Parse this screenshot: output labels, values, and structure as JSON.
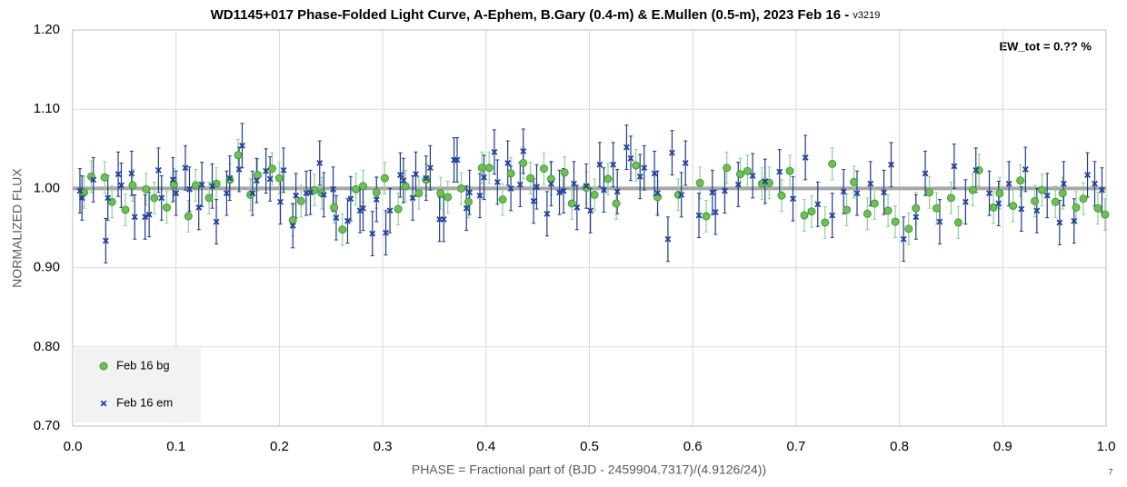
{
  "chart_data": {
    "type": "scatter",
    "title": "WD1145+017 Phase-Folded Light Curve, A-Ephem, B.Gary (0.4-m) & E.Mullen (0.5-m), 2023 Feb 16 - ",
    "subtitle": "v3219",
    "annotation": "EW_tot = 0.?? %",
    "x_label": "PHASE = Fractional part of (BJD - 2459904.7317)/(4.9126/24))",
    "y_label": "NORMALIZED FLUX",
    "footnote": "7",
    "xlim": [
      0,
      1
    ],
    "ylim": [
      0.7,
      1.2
    ],
    "xticks": [
      {
        "value": 0,
        "label": "0.0"
      },
      {
        "value": 0.1,
        "label": "0.1"
      },
      {
        "value": 0.2,
        "label": "0.2"
      },
      {
        "value": 0.3,
        "label": "0.3"
      },
      {
        "value": 0.4,
        "label": "0.4"
      },
      {
        "value": 0.5,
        "label": "0.5"
      },
      {
        "value": 0.6,
        "label": "0.6"
      },
      {
        "value": 0.7,
        "label": "0.7"
      },
      {
        "value": 0.8,
        "label": "0.8"
      },
      {
        "value": 0.9,
        "label": "0.9"
      },
      {
        "value": 1,
        "label": "1.0"
      }
    ],
    "yticks": [
      {
        "value": 0.7,
        "label": "0.70"
      },
      {
        "value": 0.8,
        "label": "0.80"
      },
      {
        "value": 0.9,
        "label": "0.90"
      },
      {
        "value": 1.0,
        "label": "1.00"
      },
      {
        "value": 1.1,
        "label": "1.10"
      },
      {
        "value": 1.2,
        "label": "1.20"
      }
    ],
    "grid": true,
    "legend": "bottom-left",
    "reference_line": {
      "y": 1.0,
      "color": "#a6a6a6"
    },
    "series": [
      {
        "name": "Feb 16 bg",
        "marker": "circle",
        "color": "#70c050",
        "error_color": "#8fd18f",
        "error": 0.02,
        "x": [
          0.011,
          0.018,
          0.031,
          0.038,
          0.051,
          0.058,
          0.071,
          0.079,
          0.091,
          0.098,
          0.112,
          0.119,
          0.132,
          0.139,
          0.152,
          0.16,
          0.172,
          0.179,
          0.193,
          0.2,
          0.213,
          0.221,
          0.234,
          0.241,
          0.253,
          0.261,
          0.274,
          0.281,
          0.294,
          0.302,
          0.315,
          0.322,
          0.335,
          0.342,
          0.356,
          0.363,
          0.376,
          0.383,
          0.396,
          0.403,
          0.416,
          0.424,
          0.436,
          0.443,
          0.456,
          0.463,
          0.476,
          0.483,
          0.497,
          0.505,
          0.518,
          0.526,
          0.545,
          0.566,
          0.586,
          0.607,
          0.613,
          0.633,
          0.646,
          0.653,
          0.667,
          0.674,
          0.686,
          0.694,
          0.708,
          0.715,
          0.728,
          0.735,
          0.749,
          0.756,
          0.769,
          0.776,
          0.789,
          0.796,
          0.809,
          0.816,
          0.829,
          0.836,
          0.85,
          0.857,
          0.871,
          0.877,
          0.891,
          0.897,
          0.91,
          0.917,
          0.931,
          0.938,
          0.951,
          0.958,
          0.971,
          0.978,
          0.992,
          0.999
        ],
        "values": [
          0.995,
          1.015,
          1.014,
          0.983,
          0.973,
          1.004,
          0.999,
          0.988,
          0.976,
          1.005,
          0.965,
          1.004,
          0.988,
          1.006,
          1.011,
          1.042,
          0.992,
          1.017,
          1.025,
          1.013,
          0.96,
          0.984,
          0.998,
          0.994,
          0.976,
          0.948,
          0.999,
          1.003,
          0.995,
          1.013,
          0.974,
          1.003,
          0.994,
          1.011,
          0.994,
          0.989,
          1.0,
          0.983,
          1.026,
          1.026,
          0.986,
          1.019,
          1.032,
          1.013,
          1.025,
          1.012,
          1.02,
          0.981,
          1.001,
          0.992,
          1.012,
          0.981,
          1.029,
          0.989,
          0.992,
          1.007,
          0.965,
          1.026,
          1.018,
          1.022,
          1.006,
          1.007,
          0.991,
          1.022,
          0.966,
          0.971,
          0.957,
          1.031,
          0.973,
          1.008,
          0.968,
          0.981,
          0.972,
          0.958,
          0.949,
          0.975,
          0.995,
          0.975,
          0.988,
          0.957,
          0.998,
          1.023,
          0.976,
          0.994,
          0.978,
          1.01,
          0.984,
          0.998,
          0.983,
          0.994,
          0.976,
          0.987,
          0.975,
          0.967
        ]
      },
      {
        "name": "Feb 16 em",
        "marker": "x",
        "color": "#2040a0",
        "error_color": "#1f3a93",
        "error": 0.028,
        "x": [
          0.007,
          0.009,
          0.02,
          0.032,
          0.034,
          0.044,
          0.047,
          0.057,
          0.06,
          0.07,
          0.074,
          0.083,
          0.086,
          0.097,
          0.1,
          0.109,
          0.113,
          0.122,
          0.125,
          0.135,
          0.139,
          0.149,
          0.152,
          0.161,
          0.164,
          0.174,
          0.178,
          0.187,
          0.191,
          0.201,
          0.204,
          0.213,
          0.216,
          0.226,
          0.23,
          0.239,
          0.243,
          0.252,
          0.255,
          0.266,
          0.269,
          0.278,
          0.281,
          0.29,
          0.294,
          0.303,
          0.307,
          0.317,
          0.32,
          0.329,
          0.332,
          0.342,
          0.346,
          0.355,
          0.359,
          0.369,
          0.372,
          0.381,
          0.384,
          0.394,
          0.398,
          0.408,
          0.411,
          0.421,
          0.424,
          0.433,
          0.436,
          0.446,
          0.449,
          0.459,
          0.463,
          0.471,
          0.475,
          0.485,
          0.488,
          0.497,
          0.501,
          0.51,
          0.514,
          0.523,
          0.527,
          0.536,
          0.54,
          0.549,
          0.553,
          0.563,
          0.566,
          0.576,
          0.58,
          0.589,
          0.593,
          0.606,
          0.619,
          0.622,
          0.631,
          0.644,
          0.658,
          0.67,
          0.684,
          0.697,
          0.709,
          0.721,
          0.735,
          0.746,
          0.759,
          0.772,
          0.785,
          0.792,
          0.804,
          0.816,
          0.825,
          0.839,
          0.853,
          0.864,
          0.874,
          0.887,
          0.896,
          0.906,
          0.918,
          0.922,
          0.933,
          0.943,
          0.955,
          0.959,
          0.969,
          0.982,
          0.989,
          0.996
        ],
        "values": [
          0.997,
          0.988,
          1.011,
          0.934,
          0.988,
          1.018,
          1.004,
          1.019,
          0.964,
          0.964,
          0.967,
          1.023,
          0.988,
          1.011,
          0.994,
          1.026,
          0.999,
          0.976,
          1.005,
          1.003,
          0.958,
          0.994,
          1.013,
          1.024,
          1.054,
          0.994,
          1.01,
          1.022,
          1.012,
          0.983,
          1.023,
          0.953,
          0.991,
          0.994,
          0.995,
          1.032,
          0.992,
          0.999,
          0.963,
          0.959,
          0.987,
          0.972,
          0.975,
          0.943,
          0.986,
          0.944,
          0.972,
          1.017,
          1.01,
          0.988,
          1.018,
          1.013,
          1.026,
          0.961,
          0.961,
          1.036,
          1.036,
          0.975,
          0.995,
          0.991,
          1.014,
          1.046,
          1.008,
          1.032,
          1.0,
          1.005,
          1.047,
          0.984,
          1.002,
          0.968,
          1.006,
          0.995,
          0.997,
          1.006,
          0.976,
          1.003,
          0.972,
          1.03,
          0.998,
          1.03,
          0.996,
          1.052,
          1.038,
          1.015,
          1.026,
          1.019,
          0.994,
          0.936,
          1.045,
          0.992,
          1.032,
          0.966,
          0.995,
          0.97,
          0.997,
          1.005,
          1.016,
          1.009,
          1.021,
          0.987,
          1.039,
          0.98,
          0.966,
          0.996,
          0.994,
          1.006,
          0.995,
          1.03,
          0.936,
          0.964,
          1.019,
          0.958,
          1.028,
          0.983,
          1.023,
          0.994,
          0.981,
          1.006,
          0.974,
          1.024,
          0.972,
          0.991,
          0.957,
          1.006,
          0.959,
          1.017,
          1.006,
          0.998
        ]
      }
    ]
  }
}
